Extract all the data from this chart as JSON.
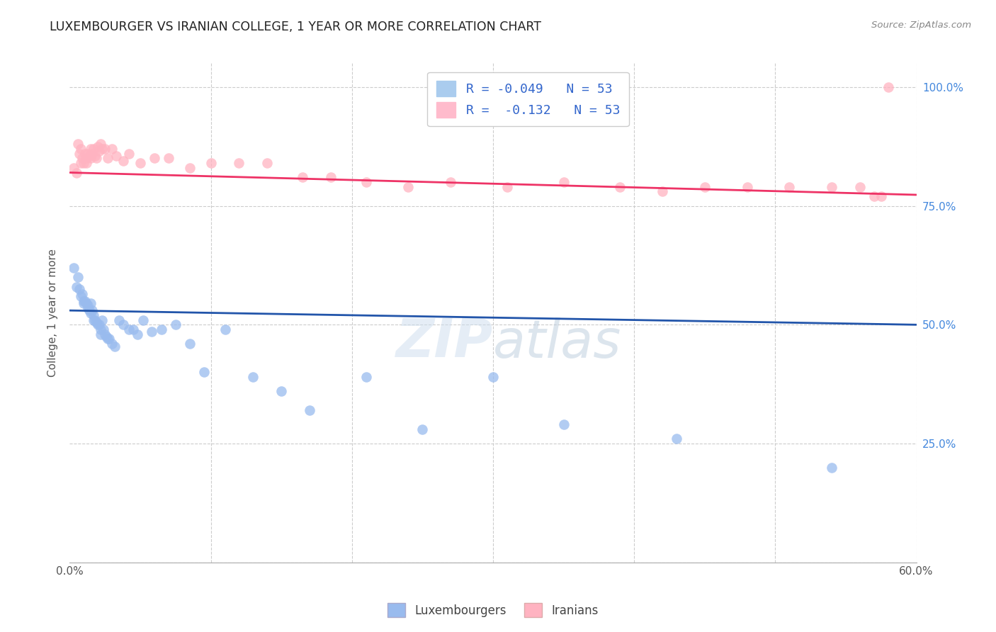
{
  "title": "LUXEMBOURGER VS IRANIAN COLLEGE, 1 YEAR OR MORE CORRELATION CHART",
  "source": "Source: ZipAtlas.com",
  "ylabel": "College, 1 year or more",
  "watermark_part1": "ZIP",
  "watermark_part2": "atlas",
  "legend_blue_r": "R = -0.049",
  "legend_blue_n": "N = 53",
  "legend_pink_r": "R =  -0.132",
  "legend_pink_n": "N = 53",
  "legend_label1": "Luxembourgers",
  "legend_label2": "Iranians",
  "xlim": [
    0.0,
    0.6
  ],
  "ylim": [
    0.0,
    1.05
  ],
  "x_ticks": [
    0.0,
    0.1,
    0.2,
    0.3,
    0.4,
    0.5,
    0.6
  ],
  "x_tick_labels": [
    "0.0%",
    "",
    "",
    "",
    "",
    "",
    "60.0%"
  ],
  "y_ticks": [
    0.0,
    0.25,
    0.5,
    0.75,
    1.0
  ],
  "y_tick_labels_left": [
    "",
    "",
    "",
    "",
    ""
  ],
  "y_tick_labels_right": [
    "",
    "25.0%",
    "50.0%",
    "75.0%",
    "100.0%"
  ],
  "blue_color": "#99BBEE",
  "pink_color": "#FFB3C1",
  "line_blue_color": "#2255AA",
  "line_pink_color": "#EE3366",
  "blue_x": [
    0.003,
    0.005,
    0.006,
    0.007,
    0.008,
    0.009,
    0.01,
    0.01,
    0.011,
    0.012,
    0.013,
    0.013,
    0.014,
    0.015,
    0.015,
    0.016,
    0.017,
    0.017,
    0.018,
    0.019,
    0.02,
    0.021,
    0.022,
    0.022,
    0.023,
    0.024,
    0.025,
    0.026,
    0.027,
    0.028,
    0.03,
    0.032,
    0.035,
    0.038,
    0.042,
    0.045,
    0.048,
    0.052,
    0.058,
    0.065,
    0.075,
    0.085,
    0.095,
    0.11,
    0.13,
    0.15,
    0.17,
    0.21,
    0.25,
    0.3,
    0.35,
    0.43,
    0.54
  ],
  "blue_y": [
    0.62,
    0.58,
    0.6,
    0.575,
    0.56,
    0.565,
    0.55,
    0.545,
    0.55,
    0.545,
    0.54,
    0.535,
    0.53,
    0.545,
    0.525,
    0.53,
    0.52,
    0.51,
    0.51,
    0.505,
    0.5,
    0.5,
    0.49,
    0.48,
    0.51,
    0.49,
    0.48,
    0.475,
    0.47,
    0.47,
    0.46,
    0.455,
    0.51,
    0.5,
    0.49,
    0.49,
    0.48,
    0.51,
    0.485,
    0.49,
    0.5,
    0.46,
    0.4,
    0.49,
    0.39,
    0.36,
    0.32,
    0.39,
    0.28,
    0.39,
    0.29,
    0.26,
    0.2
  ],
  "pink_x": [
    0.003,
    0.005,
    0.006,
    0.007,
    0.008,
    0.008,
    0.009,
    0.01,
    0.011,
    0.012,
    0.012,
    0.013,
    0.014,
    0.015,
    0.015,
    0.016,
    0.017,
    0.018,
    0.019,
    0.02,
    0.021,
    0.022,
    0.023,
    0.025,
    0.027,
    0.03,
    0.033,
    0.038,
    0.042,
    0.05,
    0.06,
    0.07,
    0.085,
    0.1,
    0.12,
    0.14,
    0.165,
    0.185,
    0.21,
    0.24,
    0.27,
    0.31,
    0.35,
    0.39,
    0.42,
    0.45,
    0.48,
    0.51,
    0.54,
    0.56,
    0.57,
    0.575,
    0.58
  ],
  "pink_y": [
    0.83,
    0.82,
    0.88,
    0.86,
    0.87,
    0.84,
    0.85,
    0.84,
    0.86,
    0.85,
    0.84,
    0.86,
    0.855,
    0.87,
    0.85,
    0.86,
    0.87,
    0.855,
    0.85,
    0.875,
    0.865,
    0.88,
    0.87,
    0.87,
    0.85,
    0.87,
    0.855,
    0.845,
    0.86,
    0.84,
    0.85,
    0.85,
    0.83,
    0.84,
    0.84,
    0.84,
    0.81,
    0.81,
    0.8,
    0.79,
    0.8,
    0.79,
    0.8,
    0.79,
    0.78,
    0.79,
    0.79,
    0.79,
    0.79,
    0.79,
    0.77,
    0.77,
    1.0
  ],
  "grid_color": "#CCCCCC",
  "background_color": "#FFFFFF",
  "right_tick_color": "#4488DD",
  "blue_line_intercept": 0.53,
  "blue_line_slope": -0.05,
  "pink_line_intercept": 0.82,
  "pink_line_slope": -0.078
}
